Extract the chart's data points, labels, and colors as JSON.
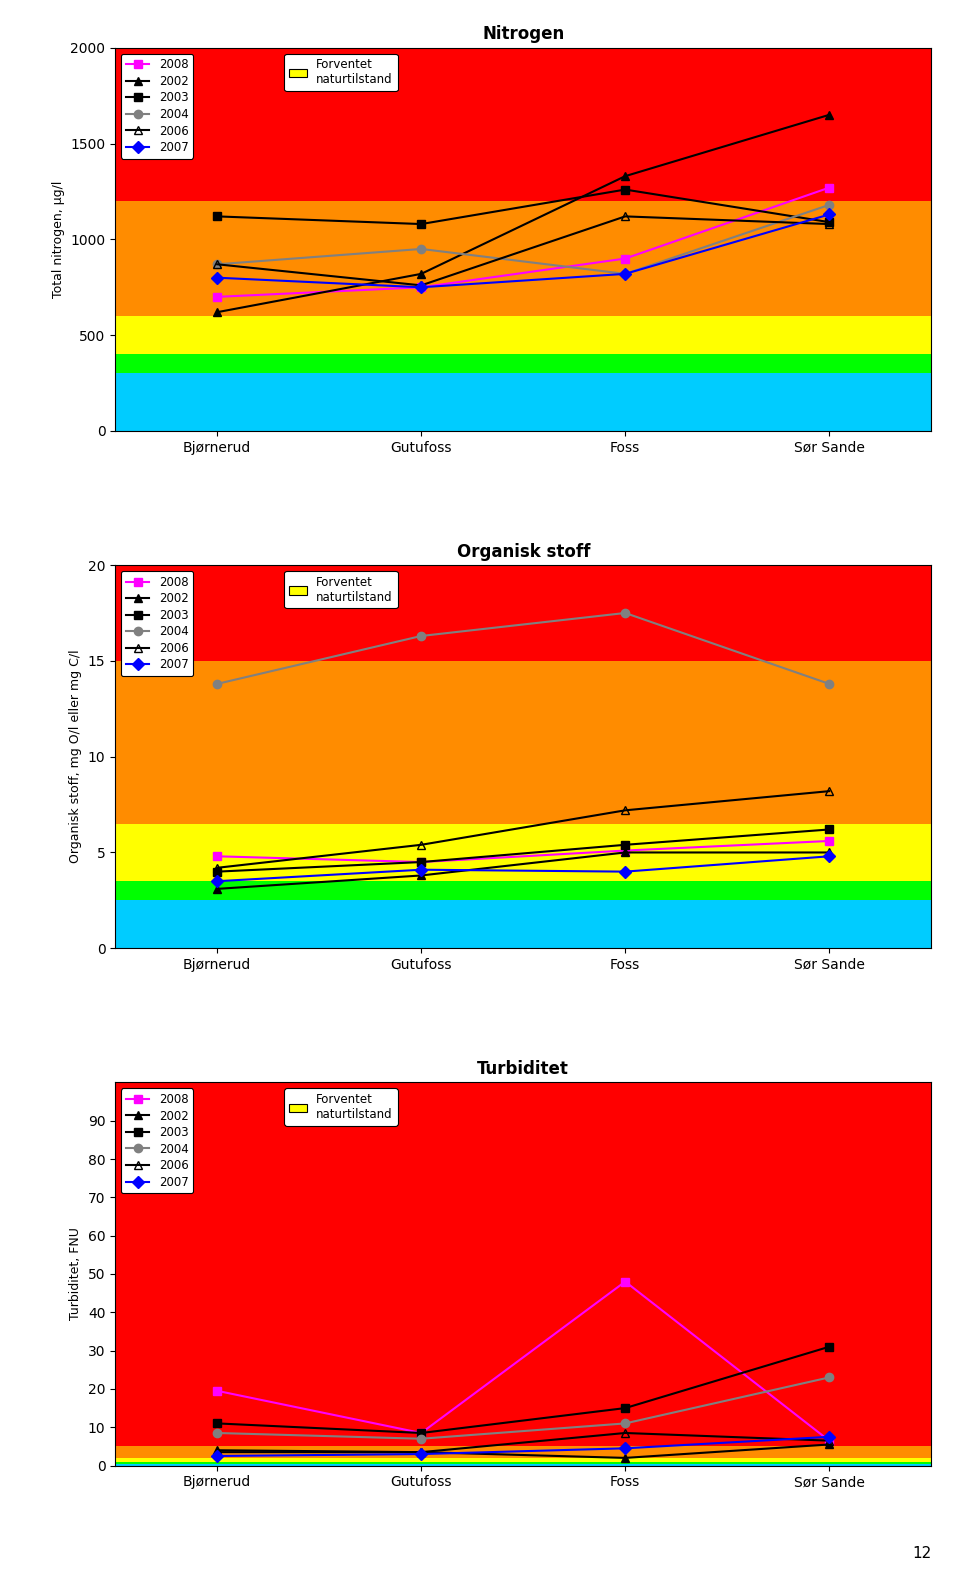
{
  "categories": [
    "Bjørnerud",
    "Gutufoss",
    "Foss",
    "Sør Sande"
  ],
  "nitrogen": {
    "title": "Nitrogen",
    "ylabel": "Total nitrogen, µg/l",
    "ylim": [
      0,
      2000
    ],
    "yticks": [
      0,
      500,
      1000,
      1500,
      2000
    ],
    "series_order": [
      "2008",
      "2002",
      "2003",
      "2004",
      "2006",
      "2007"
    ],
    "series": {
      "2008": {
        "values": [
          700,
          750,
          900,
          1270
        ],
        "color": "#FF00FF",
        "marker": "s",
        "lw": 1.5,
        "fillstyle": "full"
      },
      "2002": {
        "values": [
          620,
          820,
          1330,
          1650
        ],
        "color": "#000000",
        "marker": "^",
        "lw": 1.5,
        "fillstyle": "full"
      },
      "2003": {
        "values": [
          1120,
          1080,
          1260,
          1090
        ],
        "color": "#000000",
        "marker": "s",
        "lw": 1.5,
        "fillstyle": "full"
      },
      "2004": {
        "values": [
          870,
          950,
          820,
          1180
        ],
        "color": "#808080",
        "marker": "o",
        "lw": 1.5,
        "fillstyle": "full"
      },
      "2006": {
        "values": [
          870,
          760,
          1120,
          1080
        ],
        "color": "#000000",
        "marker": "^",
        "lw": 1.5,
        "fillstyle": "none"
      },
      "2007": {
        "values": [
          800,
          750,
          820,
          1130
        ],
        "color": "#0000FF",
        "marker": "D",
        "lw": 1.5,
        "fillstyle": "full"
      }
    },
    "bg_bands": [
      {
        "ymin": 0,
        "ymax": 300,
        "color": "#00CCFF"
      },
      {
        "ymin": 300,
        "ymax": 400,
        "color": "#00FF00"
      },
      {
        "ymin": 400,
        "ymax": 600,
        "color": "#FFFF00"
      },
      {
        "ymin": 600,
        "ymax": 1200,
        "color": "#FF8C00"
      },
      {
        "ymin": 1200,
        "ymax": 2000,
        "color": "#FF0000"
      }
    ]
  },
  "organisk": {
    "title": "Organisk stoff",
    "ylabel": "Organisk stoff, mg O/l eller mg C/l",
    "ylim": [
      0,
      20
    ],
    "yticks": [
      0,
      5,
      10,
      15,
      20
    ],
    "series_order": [
      "2008",
      "2002",
      "2003",
      "2004",
      "2006",
      "2007"
    ],
    "series": {
      "2008": {
        "values": [
          4.8,
          4.5,
          5.1,
          5.6
        ],
        "color": "#FF00FF",
        "marker": "s",
        "lw": 1.5,
        "fillstyle": "full"
      },
      "2002": {
        "values": [
          3.1,
          3.8,
          5.0,
          5.0
        ],
        "color": "#000000",
        "marker": "^",
        "lw": 1.5,
        "fillstyle": "full"
      },
      "2003": {
        "values": [
          4.0,
          4.5,
          5.4,
          6.2
        ],
        "color": "#000000",
        "marker": "s",
        "lw": 1.5,
        "fillstyle": "full"
      },
      "2004": {
        "values": [
          13.8,
          16.3,
          17.5,
          13.8
        ],
        "color": "#808080",
        "marker": "o",
        "lw": 1.5,
        "fillstyle": "full"
      },
      "2006": {
        "values": [
          4.2,
          5.4,
          7.2,
          8.2
        ],
        "color": "#000000",
        "marker": "^",
        "lw": 1.5,
        "fillstyle": "none"
      },
      "2007": {
        "values": [
          3.5,
          4.1,
          4.0,
          4.8
        ],
        "color": "#0000FF",
        "marker": "D",
        "lw": 1.5,
        "fillstyle": "full"
      }
    },
    "bg_bands": [
      {
        "ymin": 0,
        "ymax": 2.5,
        "color": "#00CCFF"
      },
      {
        "ymin": 2.5,
        "ymax": 3.5,
        "color": "#00FF00"
      },
      {
        "ymin": 3.5,
        "ymax": 6.5,
        "color": "#FFFF00"
      },
      {
        "ymin": 6.5,
        "ymax": 15,
        "color": "#FF8C00"
      },
      {
        "ymin": 15,
        "ymax": 20,
        "color": "#FF0000"
      }
    ]
  },
  "turbiditet": {
    "title": "Turbiditet",
    "ylabel": "Turbiditet, FNU",
    "ylim": [
      0,
      100
    ],
    "yticks": [
      0,
      10,
      20,
      30,
      40,
      50,
      60,
      70,
      80,
      90
    ],
    "series_order": [
      "2008",
      "2002",
      "2003",
      "2004",
      "2006",
      "2007"
    ],
    "series": {
      "2008": {
        "values": [
          19.5,
          8.5,
          48.0,
          6.5
        ],
        "color": "#FF00FF",
        "marker": "s",
        "lw": 1.5,
        "fillstyle": "full"
      },
      "2002": {
        "values": [
          4.0,
          3.5,
          2.0,
          5.5
        ],
        "color": "#000000",
        "marker": "^",
        "lw": 1.5,
        "fillstyle": "full"
      },
      "2003": {
        "values": [
          11.0,
          8.5,
          15.0,
          31.0
        ],
        "color": "#000000",
        "marker": "s",
        "lw": 1.5,
        "fillstyle": "full"
      },
      "2004": {
        "values": [
          8.5,
          7.0,
          11.0,
          23.0
        ],
        "color": "#808080",
        "marker": "o",
        "lw": 1.5,
        "fillstyle": "full"
      },
      "2006": {
        "values": [
          3.5,
          3.5,
          8.5,
          6.5
        ],
        "color": "#000000",
        "marker": "^",
        "lw": 1.5,
        "fillstyle": "none"
      },
      "2007": {
        "values": [
          2.5,
          3.0,
          4.5,
          7.5
        ],
        "color": "#0000FF",
        "marker": "D",
        "lw": 1.5,
        "fillstyle": "full"
      }
    },
    "bg_bands": [
      {
        "ymin": 0,
        "ymax": 0.5,
        "color": "#00CCFF"
      },
      {
        "ymin": 0.5,
        "ymax": 1.0,
        "color": "#00FF00"
      },
      {
        "ymin": 1.0,
        "ymax": 2.0,
        "color": "#FFFF00"
      },
      {
        "ymin": 2.0,
        "ymax": 5.0,
        "color": "#FF8C00"
      },
      {
        "ymin": 5.0,
        "ymax": 100,
        "color": "#FF0000"
      }
    ]
  },
  "legend_series": [
    "2008",
    "2002",
    "2003",
    "2004",
    "2006",
    "2007"
  ],
  "legend_colors": [
    "#FF00FF",
    "#000000",
    "#000000",
    "#808080",
    "#000000",
    "#0000FF"
  ],
  "legend_markers": [
    "s",
    "^",
    "s",
    "o",
    "^",
    "D"
  ],
  "legend_fillstyle": [
    "full",
    "full",
    "full",
    "full",
    "none",
    "full"
  ],
  "forventet_label": "Forventet\nnaturtilstand",
  "forventet_color": "#FFFF00",
  "page_number": "12"
}
